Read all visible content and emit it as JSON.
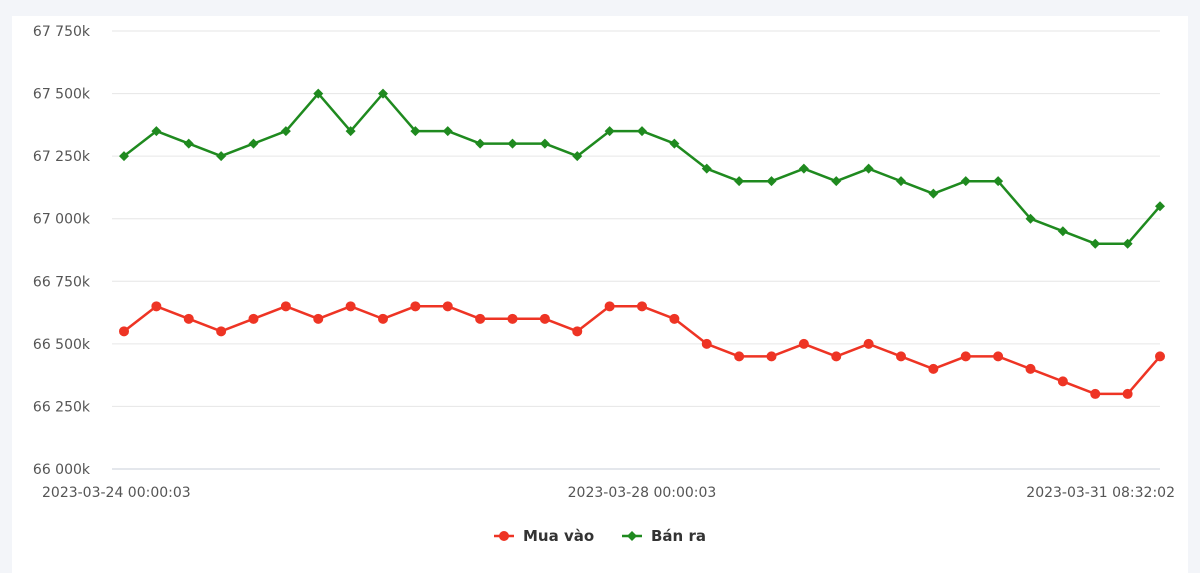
{
  "chart_data": {
    "type": "line",
    "ylim": [
      66000,
      67750
    ],
    "yticks": [
      66000,
      66250,
      66500,
      66750,
      67000,
      67250,
      67500,
      67750
    ],
    "ytick_labels": [
      "66 000k",
      "66 250k",
      "66 500k",
      "66 750k",
      "67 000k",
      "67 250k",
      "67 500k",
      "67 750k"
    ],
    "xtick_labels": [
      {
        "index": 0,
        "label": "2023-03-24 00:00:03",
        "align": "start"
      },
      {
        "index": 16,
        "label": "2023-03-28 00:00:03",
        "align": "middle"
      },
      {
        "index": 32,
        "label": "2023-03-31 08:32:02",
        "align": "end"
      }
    ],
    "grid": true,
    "legend": "bottom-center",
    "series": [
      {
        "name": "Mua vào",
        "color": "#ee3424",
        "marker": "circle",
        "values": [
          66550,
          66650,
          66600,
          66550,
          66600,
          66650,
          66600,
          66650,
          66600,
          66650,
          66650,
          66600,
          66600,
          66600,
          66550,
          66650,
          66650,
          66600,
          66500,
          66450,
          66450,
          66500,
          66450,
          66500,
          66450,
          66400,
          66450,
          66450,
          66400,
          66350,
          66300,
          66300,
          66450
        ]
      },
      {
        "name": "Bán ra",
        "color": "#1f8a1f",
        "marker": "diamond",
        "values": [
          67250,
          67350,
          67300,
          67250,
          67300,
          67350,
          67500,
          67350,
          67500,
          67350,
          67350,
          67300,
          67300,
          67300,
          67250,
          67350,
          67350,
          67300,
          67200,
          67150,
          67150,
          67200,
          67150,
          67200,
          67150,
          67100,
          67150,
          67150,
          67000,
          66950,
          66900,
          66900,
          67050
        ]
      }
    ]
  }
}
